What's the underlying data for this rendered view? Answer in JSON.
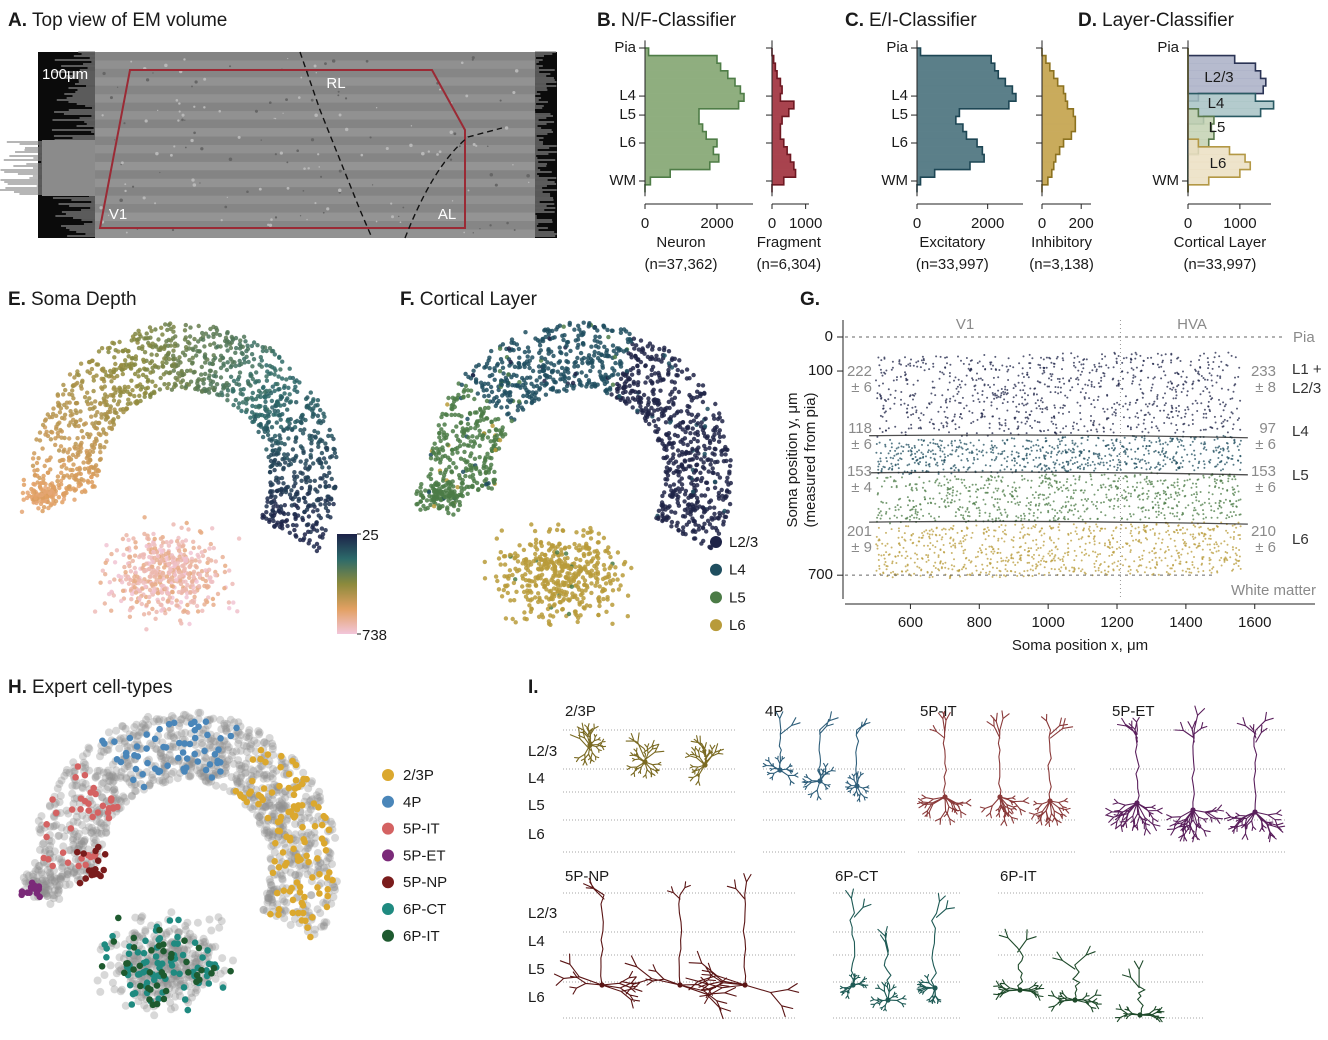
{
  "a": {
    "letter": "A.",
    "title": "Top view of EM volume",
    "scale_bar": "100μm",
    "labels": [
      "RL",
      "V1",
      "AL"
    ]
  },
  "depth": {
    "ylim": [
      -40,
      780
    ],
    "bins": [
      0,
      40,
      80,
      120,
      160,
      200,
      240,
      280,
      320,
      360,
      400,
      440,
      480,
      520,
      560,
      600,
      640,
      680,
      720,
      760
    ]
  },
  "b": {
    "letter": "B.",
    "title": "N/F-Classifier",
    "layers": [
      {
        "value": 0,
        "label": "Pia"
      },
      {
        "value": 253,
        "label": "L4"
      },
      {
        "value": 353,
        "label": "L5"
      },
      {
        "value": 500,
        "label": "L6"
      },
      {
        "value": 700,
        "label": "WM"
      }
    ],
    "histograms": [
      {
        "name": "Neuron",
        "n": "(n=37,362)",
        "xlim": [
          0,
          3000
        ],
        "xticks": [
          0,
          2000
        ],
        "fill": "#8fae7f",
        "stroke": "#4f7d47",
        "values": [
          100,
          2000,
          2100,
          2300,
          2500,
          2650,
          2750,
          2600,
          1500,
          1500,
          1600,
          1700,
          2000,
          1900,
          2050,
          1800,
          700,
          150,
          0
        ]
      },
      {
        "name": "Fragment",
        "n": "(n=6,304)",
        "xlim": [
          0,
          1100
        ],
        "xticks": [
          0,
          1000
        ],
        "fill": "#a8434e",
        "stroke": "#6e1822",
        "values": [
          0,
          50,
          100,
          150,
          250,
          300,
          250,
          650,
          500,
          300,
          250,
          250,
          350,
          450,
          550,
          650,
          700,
          350,
          0
        ]
      }
    ]
  },
  "c": {
    "letter": "C.",
    "title": "E/I-Classifier",
    "layers": [
      {
        "value": 0,
        "label": "Pia"
      },
      {
        "value": 253,
        "label": "L4"
      },
      {
        "value": 353,
        "label": "L5"
      },
      {
        "value": 500,
        "label": "L6"
      },
      {
        "value": 700,
        "label": "WM"
      }
    ],
    "histograms": [
      {
        "name": "Excitatory",
        "n": "(n=33,997)",
        "xlim": [
          0,
          3000
        ],
        "xticks": [
          0,
          2000
        ],
        "fill": "#5b7f89",
        "stroke": "#1d4654",
        "values": [
          100,
          2100,
          2200,
          2300,
          2500,
          2700,
          2800,
          2600,
          1200,
          1100,
          1300,
          1400,
          1700,
          1850,
          1900,
          1500,
          500,
          100,
          0
        ]
      },
      {
        "name": "Inhibitory",
        "n": "(n=3,138)",
        "xlim": [
          0,
          250
        ],
        "xticks": [
          0,
          200
        ],
        "fill": "#c9ab5c",
        "stroke": "#8c7220",
        "values": [
          0,
          20,
          40,
          60,
          80,
          110,
          120,
          130,
          160,
          170,
          170,
          150,
          110,
          90,
          70,
          60,
          50,
          30,
          0
        ]
      }
    ]
  },
  "d": {
    "letter": "D.",
    "title": "Layer-Classifier",
    "layers": [
      {
        "value": 0,
        "label": "Pia"
      },
      {
        "value": 700,
        "label": "WM"
      }
    ],
    "xlabel": "Cortical Layer",
    "n": "(n=33,997)",
    "xlim": [
      0,
      1600
    ],
    "xticks": [
      0,
      1000
    ],
    "series": [
      {
        "name": "L2/3",
        "fill": "#a9afc6",
        "stroke": "#2b3455",
        "values": [
          0,
          900,
          1300,
          1400,
          1500,
          1450,
          200,
          0,
          0,
          0,
          0,
          0,
          0,
          0,
          0,
          0,
          0,
          0,
          0
        ]
      },
      {
        "name": "L4",
        "fill": "#a7c2c4",
        "stroke": "#2a5a63",
        "values": [
          0,
          0,
          0,
          0,
          0,
          0,
          1300,
          1650,
          1400,
          300,
          0,
          0,
          0,
          0,
          0,
          0,
          0,
          0,
          0
        ]
      },
      {
        "name": "L5",
        "fill": "#c3d1b2",
        "stroke": "#5a7a4e",
        "values": [
          0,
          0,
          0,
          0,
          0,
          0,
          0,
          0,
          200,
          500,
          450,
          500,
          400,
          200,
          0,
          0,
          0,
          0,
          0
        ]
      },
      {
        "name": "L6",
        "fill": "#ebdfc2",
        "stroke": "#b39845",
        "values": [
          0,
          0,
          0,
          0,
          0,
          0,
          0,
          0,
          0,
          0,
          0,
          0,
          200,
          800,
          1100,
          1200,
          1000,
          400,
          0
        ]
      }
    ]
  },
  "e": {
    "letter": "E.",
    "title": "Soma Depth",
    "colorbar": [
      25,
      738
    ],
    "colors": [
      "#1c2248",
      "#2c6a6a",
      "#8c8a3c",
      "#e2a062",
      "#f2c6da"
    ]
  },
  "f": {
    "letter": "F.",
    "title": "Cortical Layer",
    "legend": [
      {
        "name": "L2/3",
        "color": "#1e2347"
      },
      {
        "name": "L4",
        "color": "#1f4e5f"
      },
      {
        "name": "L5",
        "color": "#4b7b46"
      },
      {
        "name": "L6",
        "color": "#b89b3a"
      }
    ]
  },
  "g": {
    "letter": "G.",
    "xlabel": "Soma position x, μm",
    "ylabel": [
      "Soma position y, μm",
      "(measured from pia)"
    ],
    "xlim": [
      410,
      1775
    ],
    "xticks": [
      600,
      800,
      1000,
      1200,
      1400,
      1600
    ],
    "ylim": [
      -50,
      770
    ],
    "yticks": [
      0,
      100,
      700
    ],
    "regions": [
      "V1",
      "HVA"
    ],
    "boundaries": [
      "Pia",
      "White matter"
    ],
    "layers": [
      "L1 +",
      "L2/3",
      "L4",
      "L5",
      "L6"
    ],
    "left": [
      [
        "222",
        "± 6"
      ],
      [
        "118",
        "± 6"
      ],
      [
        "153",
        "± 4"
      ],
      [
        "201",
        "± 9"
      ]
    ],
    "right": [
      [
        "233",
        "± 8"
      ],
      [
        "97",
        "± 6"
      ],
      [
        "153",
        "± 6"
      ],
      [
        "210",
        "± 6"
      ]
    ]
  },
  "h": {
    "letter": "H.",
    "title": "Expert cell-types",
    "legend": [
      {
        "name": "2/3P",
        "color": "#dba82e"
      },
      {
        "name": "4P",
        "color": "#4a86b9"
      },
      {
        "name": "5P-IT",
        "color": "#d46262"
      },
      {
        "name": "5P-ET",
        "color": "#7b2a79"
      },
      {
        "name": "5P-NP",
        "color": "#7a1c1c"
      },
      {
        "name": "6P-CT",
        "color": "#1f8a80"
      },
      {
        "name": "6P-IT",
        "color": "#1e5a2f"
      }
    ]
  },
  "i": {
    "letter": "I.",
    "layers": [
      "L2/3",
      "L4",
      "L5",
      "L6"
    ],
    "types": [
      {
        "name": "2/3P",
        "color": "#7a6a22"
      },
      {
        "name": "4P",
        "color": "#2e5e7a"
      },
      {
        "name": "5P-IT",
        "color": "#8a3a3a"
      },
      {
        "name": "5P-ET",
        "color": "#5a1f5c"
      },
      {
        "name": "5P-NP",
        "color": "#5a1414"
      },
      {
        "name": "6P-CT",
        "color": "#1e5a55"
      },
      {
        "name": "6P-IT",
        "color": "#1e4a2a"
      }
    ]
  }
}
